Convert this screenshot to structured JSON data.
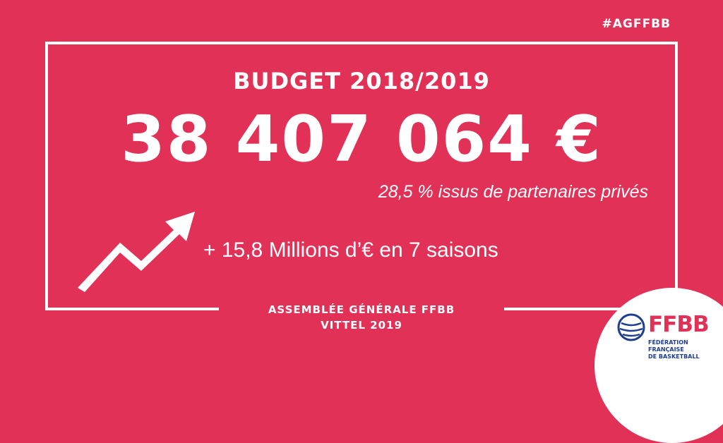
{
  "hashtag": "#AGFFBB",
  "title": "BUDGET 2018/2019",
  "amount": "38 407 064 €",
  "private_share": "28,5 % issus de partenaires privés",
  "growth": "+ 15,8 Millions d’€ en 7 saisons",
  "footer": {
    "line1": "ASSEMBLÉE GÉNÉRALE FFBB",
    "line2": "VITTEL 2019"
  },
  "logo": {
    "name": "FFBB",
    "line1": "FÉDÉRATION FRANÇAISE",
    "line2": "DE BASKETBALL"
  },
  "colors": {
    "background": "#e23157",
    "text": "#ffffff",
    "logo_blue": "#1d3d8f"
  },
  "icons": [
    "upward-trend-arrow-icon",
    "basketball-logo-icon"
  ]
}
